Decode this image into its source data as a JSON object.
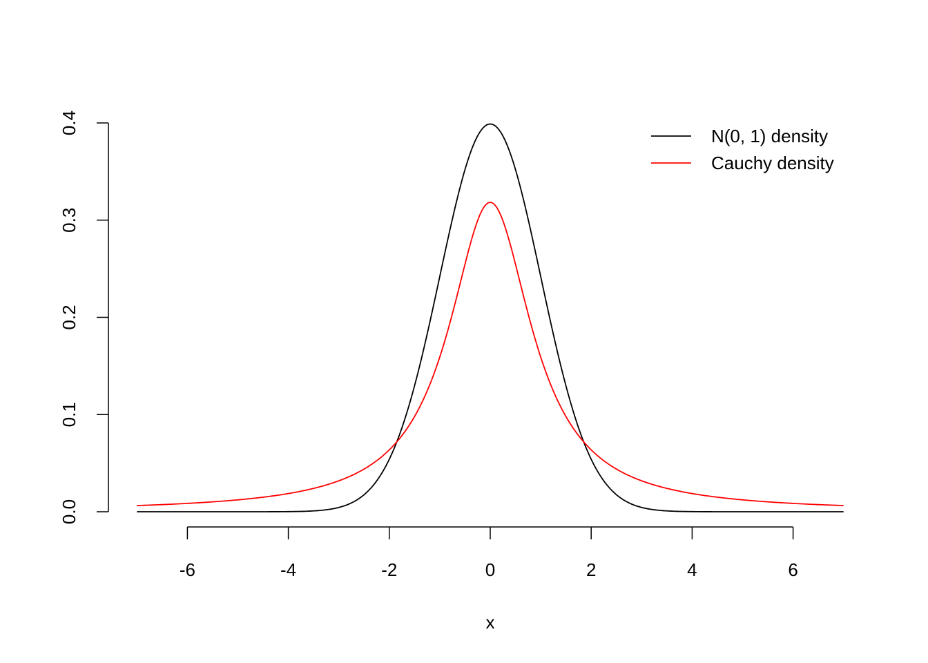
{
  "chart_data": {
    "type": "line",
    "title": "",
    "xlabel": "x",
    "ylabel": "",
    "xlim": [
      -7,
      7
    ],
    "ylim": [
      0,
      0.4
    ],
    "x_ticks": [
      -6,
      -4,
      -2,
      0,
      2,
      4,
      6
    ],
    "x_tick_labels": [
      "-6",
      "-4",
      "-2",
      "0",
      "2",
      "4",
      "6"
    ],
    "y_ticks": [
      0.0,
      0.1,
      0.2,
      0.3,
      0.4
    ],
    "y_tick_labels": [
      "0.0",
      "0.1",
      "0.2",
      "0.3",
      "0.4"
    ],
    "grid": false,
    "legend_position": "top-right",
    "series": [
      {
        "name": "N(0, 1) density",
        "color": "#000000",
        "x": [
          -7,
          -6,
          -5,
          -4,
          -3.5,
          -3,
          -2.5,
          -2,
          -1.75,
          -1.5,
          -1.25,
          -1,
          -0.75,
          -0.5,
          -0.25,
          0,
          0.25,
          0.5,
          0.75,
          1,
          1.25,
          1.5,
          1.75,
          2,
          2.5,
          3,
          3.5,
          4,
          5,
          6,
          7
        ],
        "values": [
          0.0,
          0.0,
          0.0,
          0.0001,
          0.0009,
          0.0044,
          0.0175,
          0.054,
          0.0863,
          0.1295,
          0.1826,
          0.242,
          0.3011,
          0.3521,
          0.3867,
          0.3989,
          0.3867,
          0.3521,
          0.3011,
          0.242,
          0.1826,
          0.1295,
          0.0863,
          0.054,
          0.0175,
          0.0044,
          0.0009,
          0.0001,
          0.0,
          0.0,
          0.0
        ]
      },
      {
        "name": "Cauchy density",
        "color": "#ff0000",
        "x": [
          -7,
          -6,
          -5,
          -4,
          -3.5,
          -3,
          -2.5,
          -2,
          -1.75,
          -1.5,
          -1.25,
          -1,
          -0.75,
          -0.5,
          -0.25,
          0,
          0.25,
          0.5,
          0.75,
          1,
          1.25,
          1.5,
          1.75,
          2,
          2.5,
          3,
          3.5,
          4,
          5,
          6,
          7
        ],
        "values": [
          0.0064,
          0.0086,
          0.0122,
          0.0187,
          0.024,
          0.0318,
          0.0439,
          0.0637,
          0.0784,
          0.0979,
          0.1242,
          0.1592,
          0.2037,
          0.2546,
          0.2996,
          0.3183,
          0.2996,
          0.2546,
          0.2037,
          0.1592,
          0.1242,
          0.0979,
          0.0784,
          0.0637,
          0.0439,
          0.0318,
          0.024,
          0.0187,
          0.0122,
          0.0086,
          0.0064
        ]
      }
    ]
  }
}
